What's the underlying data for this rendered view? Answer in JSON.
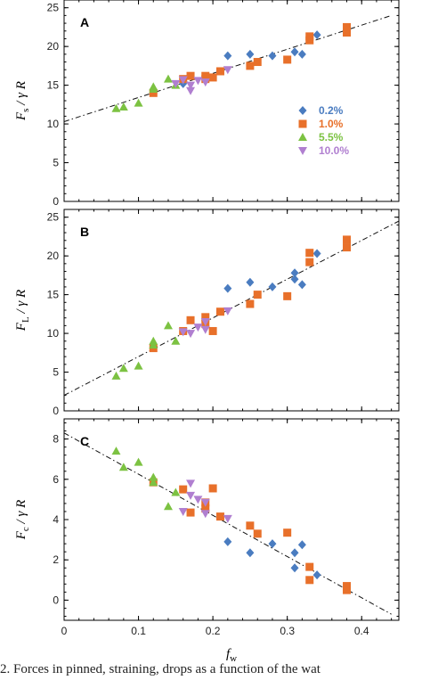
{
  "chart_data": [
    {
      "type": "scatter",
      "panel_label": "A",
      "ylabel": {
        "main": "F",
        "sub": "s",
        "rest": " / γ R"
      },
      "xlim": [
        0,
        0.45
      ],
      "ylim": [
        0,
        26
      ],
      "yticks": [
        0,
        5,
        10,
        15,
        20,
        25
      ],
      "legend_position": "right",
      "fit_line": [
        [
          0,
          10.3
        ],
        [
          0.44,
          24.0
        ]
      ],
      "series": [
        {
          "name": "0.2%",
          "marker": "diamond",
          "color": "#4a7cc0",
          "points": [
            [
              0.16,
              15.2
            ],
            [
              0.19,
              15.9
            ],
            [
              0.22,
              18.8
            ],
            [
              0.25,
              19.0
            ],
            [
              0.28,
              18.8
            ],
            [
              0.31,
              19.3
            ],
            [
              0.32,
              19.0
            ],
            [
              0.34,
              21.5
            ]
          ]
        },
        {
          "name": "1.0%",
          "marker": "square",
          "color": "#e8702a",
          "points": [
            [
              0.12,
              14.0
            ],
            [
              0.16,
              15.8
            ],
            [
              0.17,
              16.2
            ],
            [
              0.19,
              16.2
            ],
            [
              0.19,
              15.8
            ],
            [
              0.2,
              16.0
            ],
            [
              0.21,
              16.8
            ],
            [
              0.25,
              17.5
            ],
            [
              0.26,
              18.0
            ],
            [
              0.3,
              18.3
            ],
            [
              0.33,
              20.8
            ],
            [
              0.33,
              21.3
            ],
            [
              0.38,
              21.8
            ],
            [
              0.38,
              22.5
            ]
          ]
        },
        {
          "name": "5.5%",
          "marker": "triangle",
          "color": "#7cc242",
          "points": [
            [
              0.07,
              12.0
            ],
            [
              0.08,
              12.2
            ],
            [
              0.1,
              12.7
            ],
            [
              0.12,
              14.5
            ],
            [
              0.12,
              14.8
            ],
            [
              0.14,
              15.8
            ],
            [
              0.15,
              15.0
            ]
          ]
        },
        {
          "name": "10.0%",
          "marker": "tri-down",
          "color": "#b07fd0",
          "points": [
            [
              0.15,
              15.2
            ],
            [
              0.16,
              15.7
            ],
            [
              0.17,
              14.3
            ],
            [
              0.17,
              15.0
            ],
            [
              0.18,
              15.6
            ],
            [
              0.19,
              15.4
            ],
            [
              0.22,
              17.0
            ]
          ]
        }
      ]
    },
    {
      "type": "scatter",
      "panel_label": "B",
      "ylabel": {
        "main": "F",
        "sub": "L",
        "rest": " / γ R"
      },
      "xlim": [
        0,
        0.45
      ],
      "ylim": [
        0,
        26
      ],
      "yticks": [
        0,
        5,
        10,
        15,
        20,
        25
      ],
      "fit_line": [
        [
          0,
          2.0
        ],
        [
          0.45,
          24.5
        ]
      ],
      "series": [
        {
          "name": "0.2%",
          "marker": "diamond",
          "color": "#4a7cc0",
          "points": [
            [
              0.22,
              15.8
            ],
            [
              0.25,
              16.6
            ],
            [
              0.28,
              16.0
            ],
            [
              0.31,
              17.0
            ],
            [
              0.31,
              17.8
            ],
            [
              0.32,
              16.3
            ],
            [
              0.34,
              20.3
            ]
          ]
        },
        {
          "name": "1.0%",
          "marker": "square",
          "color": "#e8702a",
          "points": [
            [
              0.12,
              8.1
            ],
            [
              0.16,
              10.3
            ],
            [
              0.17,
              11.7
            ],
            [
              0.19,
              11.2
            ],
            [
              0.19,
              12.1
            ],
            [
              0.2,
              10.3
            ],
            [
              0.21,
              12.8
            ],
            [
              0.25,
              13.8
            ],
            [
              0.26,
              15.0
            ],
            [
              0.3,
              14.8
            ],
            [
              0.33,
              19.2
            ],
            [
              0.33,
              20.4
            ],
            [
              0.38,
              21.1
            ],
            [
              0.38,
              22.1
            ]
          ]
        },
        {
          "name": "5.5%",
          "marker": "triangle",
          "color": "#7cc242",
          "points": [
            [
              0.07,
              4.5
            ],
            [
              0.08,
              5.5
            ],
            [
              0.1,
              5.8
            ],
            [
              0.12,
              8.5
            ],
            [
              0.12,
              9.0
            ],
            [
              0.14,
              11.0
            ],
            [
              0.15,
              9.0
            ]
          ]
        },
        {
          "name": "10.0%",
          "marker": "tri-down",
          "color": "#b07fd0",
          "points": [
            [
              0.16,
              10.2
            ],
            [
              0.17,
              10.0
            ],
            [
              0.18,
              10.8
            ],
            [
              0.19,
              10.5
            ],
            [
              0.19,
              11.5
            ],
            [
              0.22,
              12.9
            ]
          ]
        }
      ]
    },
    {
      "type": "scatter",
      "panel_label": "C",
      "ylabel": {
        "main": "F",
        "sub": "c",
        "rest": " / γ R"
      },
      "xlabel": {
        "main": "f",
        "sub": "w"
      },
      "xlim": [
        0,
        0.45
      ],
      "ylim": [
        -1,
        9
      ],
      "yticks": [
        0,
        2,
        4,
        6,
        8
      ],
      "xticks": [
        0,
        0.1,
        0.2,
        0.3,
        0.4
      ],
      "fit_line": [
        [
          0,
          8.3
        ],
        [
          0.44,
          -0.7
        ]
      ],
      "series": [
        {
          "name": "0.2%",
          "marker": "diamond",
          "color": "#4a7cc0",
          "points": [
            [
              0.22,
              2.9
            ],
            [
              0.25,
              2.35
            ],
            [
              0.28,
              2.8
            ],
            [
              0.31,
              1.6
            ],
            [
              0.31,
              2.35
            ],
            [
              0.32,
              2.75
            ],
            [
              0.34,
              1.25
            ]
          ]
        },
        {
          "name": "1.0%",
          "marker": "square",
          "color": "#e8702a",
          "points": [
            [
              0.12,
              5.85
            ],
            [
              0.16,
              5.5
            ],
            [
              0.17,
              4.35
            ],
            [
              0.19,
              4.55
            ],
            [
              0.19,
              4.85
            ],
            [
              0.2,
              5.55
            ],
            [
              0.21,
              4.15
            ],
            [
              0.25,
              3.7
            ],
            [
              0.26,
              3.3
            ],
            [
              0.3,
              3.35
            ],
            [
              0.33,
              1.0
            ],
            [
              0.33,
              1.65
            ],
            [
              0.38,
              0.5
            ],
            [
              0.38,
              0.7
            ]
          ]
        },
        {
          "name": "5.5%",
          "marker": "triangle",
          "color": "#7cc242",
          "points": [
            [
              0.07,
              7.4
            ],
            [
              0.08,
              6.6
            ],
            [
              0.1,
              6.85
            ],
            [
              0.12,
              6.1
            ],
            [
              0.12,
              5.85
            ],
            [
              0.14,
              4.65
            ],
            [
              0.15,
              5.35
            ]
          ]
        },
        {
          "name": "10.0%",
          "marker": "tri-down",
          "color": "#b07fd0",
          "points": [
            [
              0.16,
              4.4
            ],
            [
              0.17,
              5.8
            ],
            [
              0.17,
              5.2
            ],
            [
              0.18,
              5.0
            ],
            [
              0.19,
              4.3
            ],
            [
              0.19,
              4.85
            ],
            [
              0.22,
              4.05
            ]
          ]
        }
      ]
    }
  ],
  "caption": "2. Forces in pinned, straining, drops as a function of the wat"
}
